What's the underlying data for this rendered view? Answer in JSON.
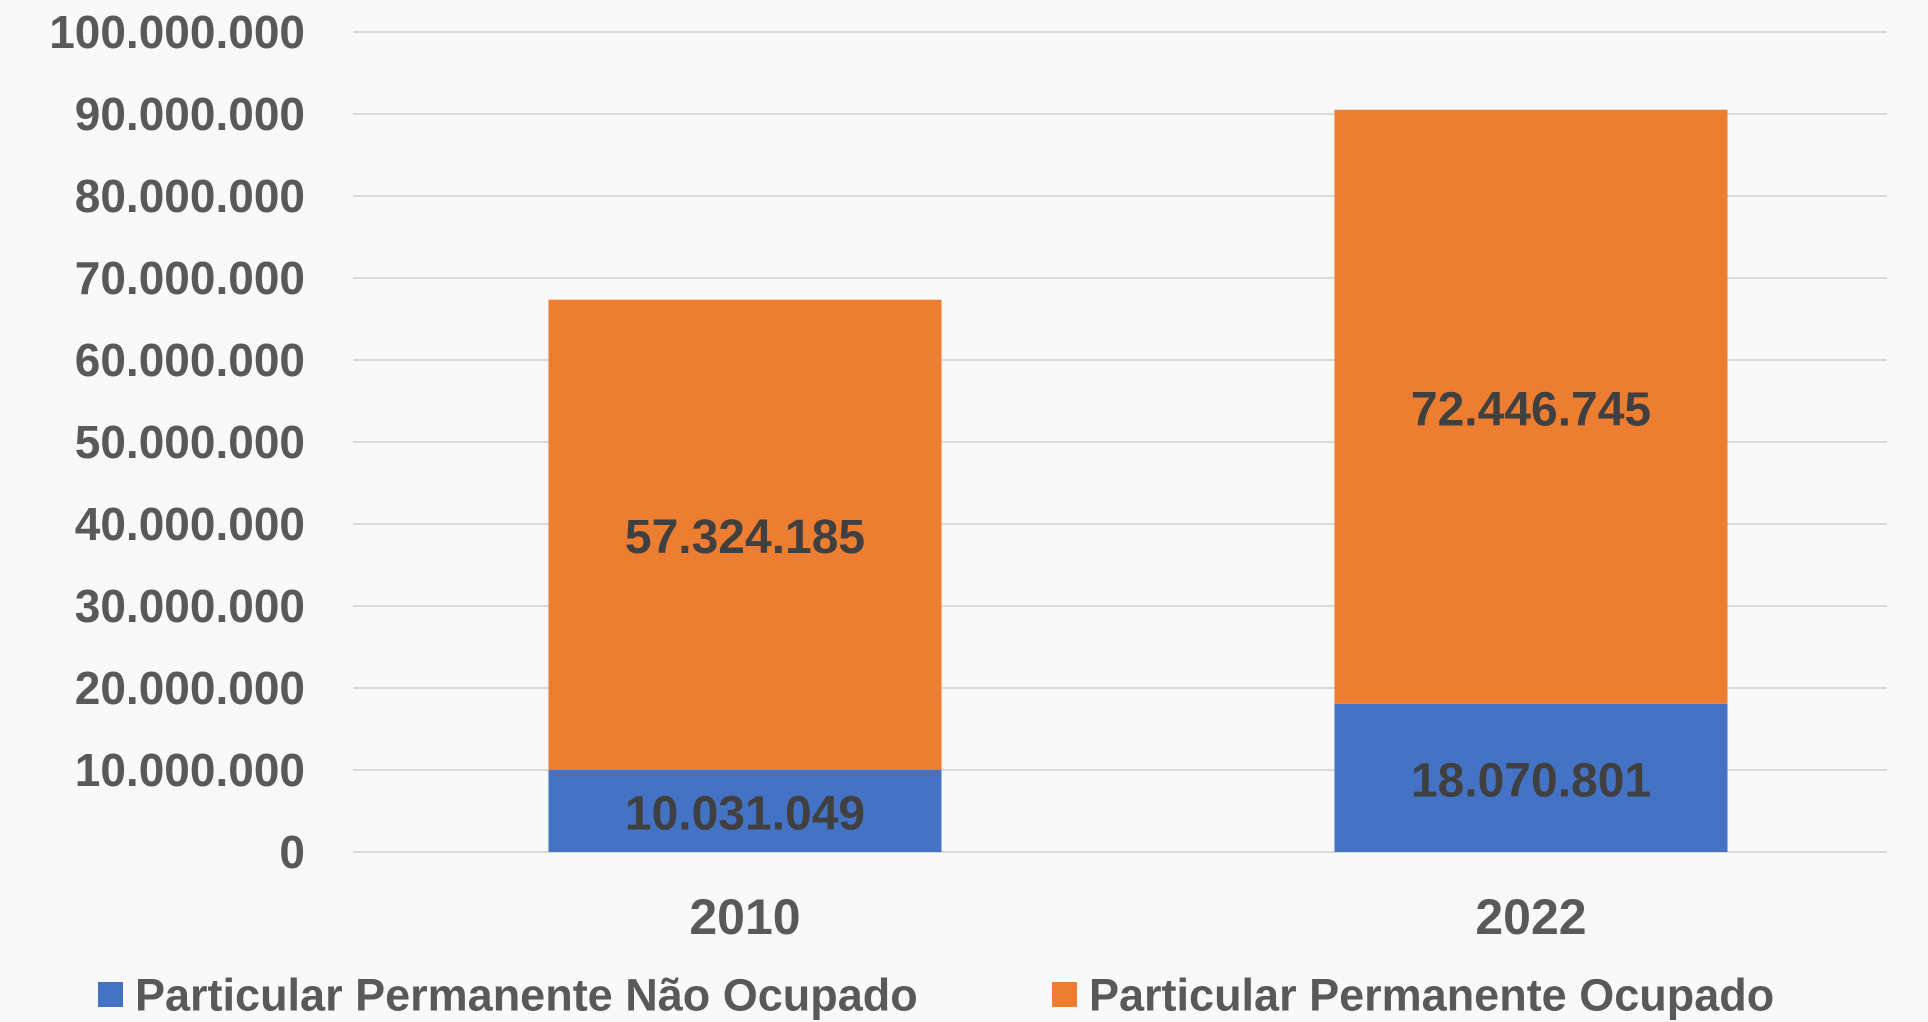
{
  "chart_data": {
    "type": "stacked_bar",
    "categories": [
      "2010",
      "2022"
    ],
    "series": [
      {
        "name": "Particular Permanente Não Ocupado",
        "color": "#4472c4",
        "values": [
          10031049,
          18070801
        ],
        "value_labels": [
          "10.031.049",
          "18.070.801"
        ]
      },
      {
        "name": "Particular Permanente Ocupado",
        "color": "#ed7d31",
        "values": [
          57324185,
          72446745
        ],
        "value_labels": [
          "57.324.185",
          "72.446.745"
        ]
      }
    ],
    "ylim": [
      0,
      100000000
    ],
    "yticks": [
      0,
      {
        "value": 10000000,
        "label": "10.000.000"
      },
      {
        "value": 20000000,
        "label": "20.000.000"
      },
      {
        "value": 30000000,
        "label": "30.000.000"
      },
      {
        "value": 40000000,
        "label": "40.000.000"
      },
      {
        "value": 50000000,
        "label": "50.000.000"
      },
      {
        "value": 60000000,
        "label": "60.000.000"
      },
      {
        "value": 70000000,
        "label": "70.000.000"
      },
      {
        "value": 80000000,
        "label": "80.000.000"
      },
      {
        "value": 90000000,
        "label": "90.000.000"
      },
      {
        "value": 100000000,
        "label": "100.000.000"
      }
    ],
    "grid": true,
    "legend": "bottom"
  }
}
